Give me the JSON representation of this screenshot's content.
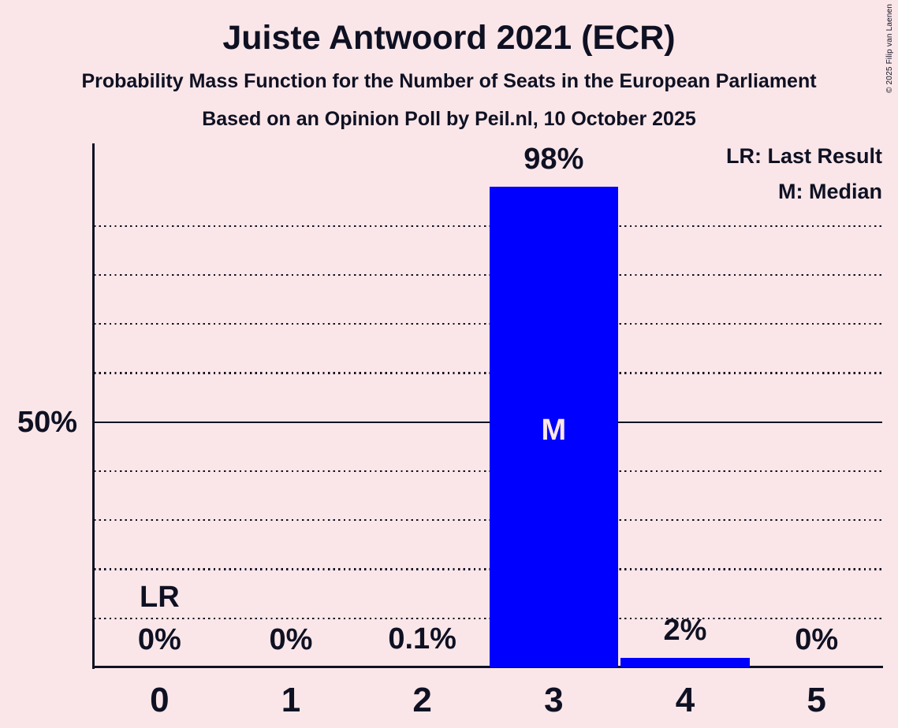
{
  "copyright": "© 2025 Filip van Laenen",
  "chart_data": {
    "type": "bar",
    "title": "Juiste Antwoord 2021 (ECR)",
    "subtitle": "Probability Mass Function for the Number of Seats in the European Parliament",
    "source_line": "Based on an Opinion Poll by Peil.nl, 10 October 2025",
    "xlabel": "",
    "ylabel": "",
    "categories": [
      "0",
      "1",
      "2",
      "3",
      "4",
      "5"
    ],
    "values": [
      0,
      0,
      0.1,
      98,
      2,
      0
    ],
    "value_labels": [
      "0%",
      "0%",
      "0.1%",
      "98%",
      "2%",
      "0%"
    ],
    "ylim": [
      0,
      100
    ],
    "gridline_values": [
      10,
      20,
      30,
      40,
      50,
      60,
      70,
      80,
      90
    ],
    "y_reference_value": 50,
    "y_reference_label": "50%",
    "grid_style": "dotted, solid line at 50%",
    "legend_position": "top-right",
    "legend": {
      "lr": "LR: Last Result",
      "m": "M: Median"
    },
    "last_result": {
      "category_index": 0,
      "label": "LR"
    },
    "median": {
      "category_index": 3,
      "label": "M"
    },
    "colors": {
      "bar": "#0000ff",
      "background": "#fae6e8",
      "text": "#0f1123",
      "median_text": "#fae6e8"
    }
  }
}
